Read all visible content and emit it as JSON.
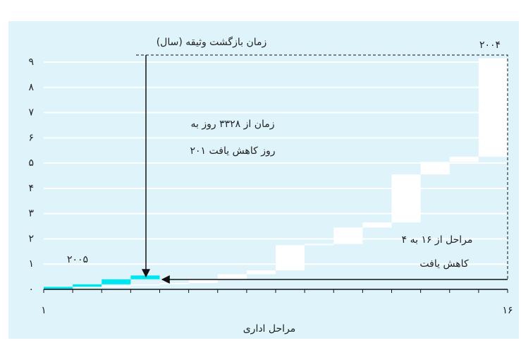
{
  "chart_data": {
    "type": "waterfall-step",
    "ylabel": "زمان بازگشت وثیقه (سال)",
    "xlabel": "مراحل اداری",
    "categories": [
      "۱",
      null,
      null,
      null,
      null,
      null,
      null,
      null,
      null,
      null,
      null,
      null,
      null,
      null,
      null,
      "۱۶"
    ],
    "series": [
      {
        "name": "۲۰۰۴",
        "color": "#ffffff",
        "values": [
          0.05,
          0.05,
          0.05,
          0.05,
          0.05,
          0.15,
          0.2,
          0.15,
          1.0,
          0.05,
          0.65,
          0.2,
          1.9,
          0.5,
          0.2,
          3.9
        ]
      },
      {
        "name": "۲۰۰۵",
        "color": "#00e6f0",
        "values": [
          0.1,
          0.1,
          0.2,
          0.15,
          null,
          null,
          null,
          null,
          null,
          null,
          null,
          null,
          null,
          null,
          null,
          null
        ]
      }
    ],
    "annotations": [
      "زمان از ۳۳۲۸ روز به",
      "۲۰۱ روز کاهش یافت",
      "مراحل از ۱۶ به ۴",
      "کاهش یافت"
    ],
    "ylim": [
      0,
      9
    ],
    "yticks": [
      {
        "value": 0,
        "label": "۰"
      },
      {
        "value": 1,
        "label": "۱"
      },
      {
        "value": 2,
        "label": "۲"
      },
      {
        "value": 3,
        "label": "۳"
      },
      {
        "value": 4,
        "label": "۴"
      },
      {
        "value": 5,
        "label": "۵"
      },
      {
        "value": 6,
        "label": "۶"
      },
      {
        "value": 7,
        "label": "۷"
      },
      {
        "value": 8,
        "label": "۸"
      },
      {
        "value": 9,
        "label": "۹"
      }
    ],
    "grid": true,
    "background": "#def3fa"
  }
}
